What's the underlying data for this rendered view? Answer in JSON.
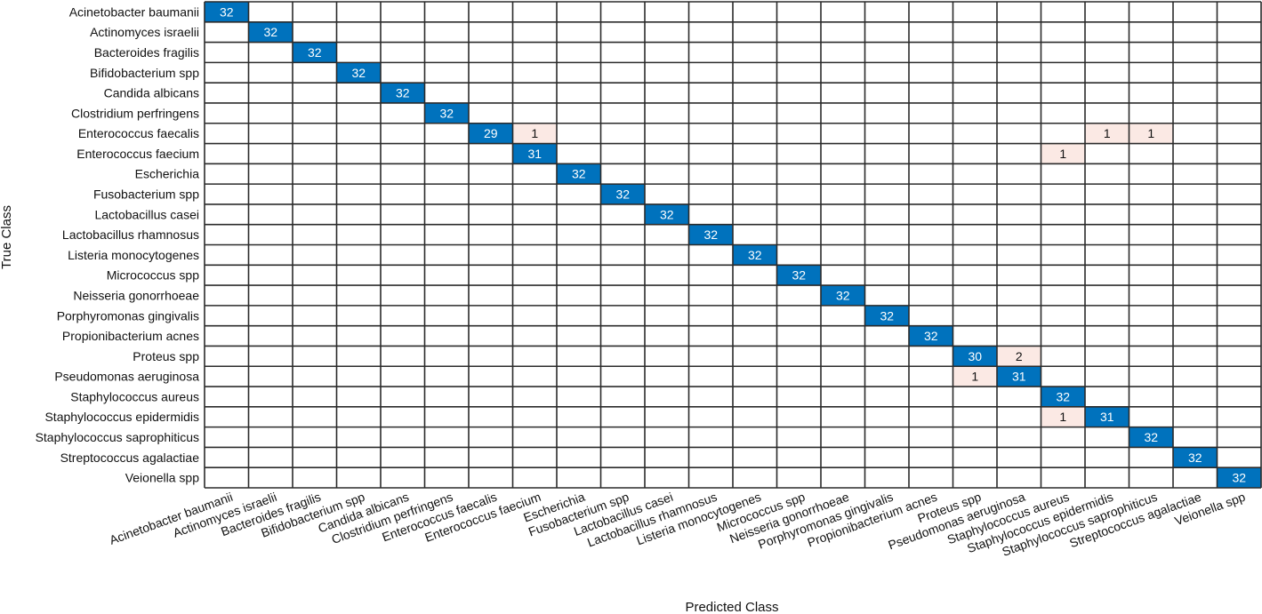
{
  "chart_data": {
    "type": "heatmap",
    "xlabel": "Predicted Class",
    "ylabel": "True Class",
    "classes": [
      "Acinetobacter baumanii",
      "Actinomyces israelii",
      "Bacteroides fragilis",
      "Bifidobacterium spp",
      "Candida albicans",
      "Clostridium perfringens",
      "Enterococcus faecalis",
      "Enterococcus faecium",
      "Escherichia",
      "Fusobacterium spp",
      "Lactobacillus casei",
      "Lactobacillus rhamnosus",
      "Listeria monocytogenes",
      "Micrococcus spp",
      "Neisseria gonorrhoeae",
      "Porphyromonas gingivalis",
      "Propionibacterium acnes",
      "Proteus spp",
      "Pseudomonas aeruginosa",
      "Staphylococcus aureus",
      "Staphylococcus epidermidis",
      "Staphylococcus saprophiticus",
      "Streptococcus agalactiae",
      "Veionella spp"
    ],
    "cells": [
      {
        "true": 0,
        "pred": 0,
        "value": 32
      },
      {
        "true": 1,
        "pred": 1,
        "value": 32
      },
      {
        "true": 2,
        "pred": 2,
        "value": 32
      },
      {
        "true": 3,
        "pred": 3,
        "value": 32
      },
      {
        "true": 4,
        "pred": 4,
        "value": 32
      },
      {
        "true": 5,
        "pred": 5,
        "value": 32
      },
      {
        "true": 6,
        "pred": 6,
        "value": 29
      },
      {
        "true": 6,
        "pred": 7,
        "value": 1
      },
      {
        "true": 6,
        "pred": 20,
        "value": 1
      },
      {
        "true": 6,
        "pred": 21,
        "value": 1
      },
      {
        "true": 7,
        "pred": 7,
        "value": 31
      },
      {
        "true": 7,
        "pred": 19,
        "value": 1
      },
      {
        "true": 8,
        "pred": 8,
        "value": 32
      },
      {
        "true": 9,
        "pred": 9,
        "value": 32
      },
      {
        "true": 10,
        "pred": 10,
        "value": 32
      },
      {
        "true": 11,
        "pred": 11,
        "value": 32
      },
      {
        "true": 12,
        "pred": 12,
        "value": 32
      },
      {
        "true": 13,
        "pred": 13,
        "value": 32
      },
      {
        "true": 14,
        "pred": 14,
        "value": 32
      },
      {
        "true": 15,
        "pred": 15,
        "value": 32
      },
      {
        "true": 16,
        "pred": 16,
        "value": 32
      },
      {
        "true": 17,
        "pred": 17,
        "value": 30
      },
      {
        "true": 17,
        "pred": 18,
        "value": 2
      },
      {
        "true": 18,
        "pred": 17,
        "value": 1
      },
      {
        "true": 18,
        "pred": 18,
        "value": 31
      },
      {
        "true": 19,
        "pred": 19,
        "value": 32
      },
      {
        "true": 20,
        "pred": 19,
        "value": 1
      },
      {
        "true": 20,
        "pred": 20,
        "value": 31
      },
      {
        "true": 21,
        "pred": 21,
        "value": 32
      },
      {
        "true": 22,
        "pred": 22,
        "value": 32
      },
      {
        "true": 23,
        "pred": 23,
        "value": 32
      }
    ],
    "colors": {
      "correct": "#0072bd",
      "incorrect": "#fbe9e4",
      "grid": "#2b2b2b",
      "correct_text": "#ffffff",
      "incorrect_text": "#111111"
    }
  }
}
